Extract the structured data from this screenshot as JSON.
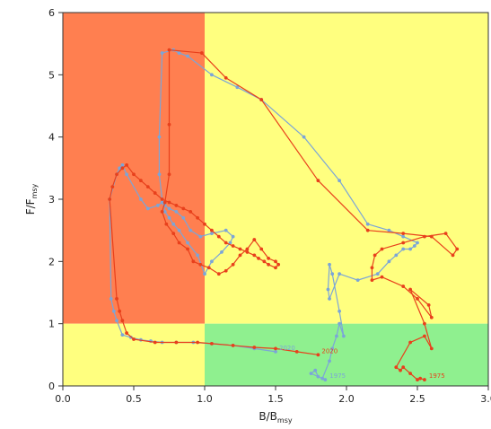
{
  "chart_data": {
    "type": "line",
    "xlabel": {
      "main": "B/B",
      "sub": "msy"
    },
    "ylabel": {
      "main": "F/F",
      "sub": "msy"
    },
    "xlim": [
      0,
      3.0
    ],
    "ylim": [
      0,
      6
    ],
    "x_ticks": [
      "0.0",
      "0.5",
      "1.0",
      "1.5",
      "2.0",
      "2.5",
      "3.0"
    ],
    "y_ticks": [
      "0",
      "1",
      "2",
      "3",
      "4",
      "5",
      "6"
    ],
    "zones": [
      {
        "x": [
          0,
          1
        ],
        "y": [
          1,
          6
        ],
        "color": "#ff7f50"
      },
      {
        "x": [
          1,
          3
        ],
        "y": [
          1,
          6
        ],
        "color": "#ffff7f"
      },
      {
        "x": [
          0,
          1
        ],
        "y": [
          0,
          1
        ],
        "color": "#ffff7f"
      },
      {
        "x": [
          1,
          3
        ],
        "y": [
          0,
          1
        ],
        "color": "#8ff08f"
      }
    ],
    "reference_lines": {
      "x": 1,
      "y": 1
    },
    "series": [
      {
        "color": "#7ba5d8",
        "start_label": "1975",
        "end_label": "2020",
        "x": [
          1.85,
          1.75,
          1.78,
          1.8,
          1.83,
          1.88,
          1.9,
          1.93,
          1.95,
          1.98,
          1.95,
          1.9,
          1.88,
          1.87,
          1.88,
          1.95,
          2.08,
          2.22,
          2.3,
          2.35,
          2.4,
          2.45,
          2.48,
          2.5,
          2.4,
          2.3,
          2.15,
          1.95,
          1.7,
          1.4,
          1.23,
          1.05,
          0.88,
          0.82,
          0.78,
          0.7,
          0.68,
          0.68,
          0.7,
          0.72,
          0.75,
          0.78,
          0.82,
          0.88,
          0.95,
          1.0,
          1.05,
          1.12,
          1.18,
          1.2,
          1.15,
          1.05,
          0.97,
          0.9,
          0.85,
          0.8,
          0.75,
          0.72,
          0.7,
          0.67,
          0.6,
          0.55,
          0.45,
          0.42,
          0.4,
          0.38,
          0.33,
          0.34,
          0.36,
          0.38,
          0.42,
          0.48,
          0.55,
          0.62,
          0.7,
          0.8,
          0.92,
          1.05,
          1.2,
          1.35,
          1.5
        ],
        "y": [
          0.1,
          0.2,
          0.25,
          0.15,
          0.12,
          0.4,
          0.6,
          0.8,
          1.0,
          0.8,
          1.2,
          1.8,
          1.95,
          1.55,
          1.4,
          1.8,
          1.7,
          1.8,
          2.0,
          2.1,
          2.2,
          2.2,
          2.25,
          2.3,
          2.4,
          2.5,
          2.6,
          3.3,
          4.0,
          4.6,
          4.8,
          5.0,
          5.3,
          5.35,
          5.4,
          5.35,
          4.0,
          3.4,
          3.0,
          2.8,
          2.7,
          2.6,
          2.5,
          2.3,
          2.1,
          1.8,
          2.0,
          2.15,
          2.3,
          2.4,
          2.5,
          2.45,
          2.4,
          2.5,
          2.7,
          2.8,
          2.85,
          2.9,
          2.95,
          2.9,
          2.85,
          3.0,
          3.4,
          3.55,
          3.5,
          3.4,
          3.0,
          1.4,
          1.2,
          1.05,
          0.82,
          0.78,
          0.74,
          0.72,
          0.7,
          0.7,
          0.7,
          0.68,
          0.65,
          0.6,
          0.55
        ]
      },
      {
        "color": "#e8401c",
        "start_label": "1975",
        "end_label": "2020",
        "x": [
          2.55,
          2.52,
          2.5,
          2.45,
          2.4,
          2.38,
          2.35,
          2.45,
          2.55,
          2.6,
          2.55,
          2.45,
          2.58,
          2.6,
          2.5,
          2.4,
          2.25,
          2.18,
          2.18,
          2.2,
          2.25,
          2.4,
          2.55,
          2.7,
          2.78,
          2.75,
          2.6,
          2.4,
          2.15,
          1.8,
          1.4,
          1.15,
          0.98,
          0.75,
          0.75,
          0.75,
          0.72,
          0.7,
          0.73,
          0.78,
          0.82,
          0.88,
          0.92,
          0.97,
          1.03,
          1.1,
          1.15,
          1.2,
          1.25,
          1.3,
          1.35,
          1.4,
          1.45,
          1.5,
          1.52,
          1.5,
          1.45,
          1.42,
          1.38,
          1.35,
          1.3,
          1.25,
          1.2,
          1.15,
          1.1,
          1.05,
          1.0,
          0.95,
          0.9,
          0.85,
          0.8,
          0.75,
          0.7,
          0.65,
          0.6,
          0.55,
          0.5,
          0.45,
          0.42,
          0.38,
          0.35,
          0.33,
          0.38,
          0.4,
          0.42,
          0.45,
          0.5,
          0.65,
          0.8,
          0.95,
          1.05,
          1.2,
          1.35,
          1.5,
          1.65,
          1.8
        ],
        "y": [
          0.1,
          0.12,
          0.1,
          0.2,
          0.3,
          0.25,
          0.3,
          0.7,
          0.8,
          0.6,
          1.0,
          1.55,
          1.3,
          1.1,
          1.4,
          1.6,
          1.75,
          1.7,
          1.9,
          2.1,
          2.2,
          2.3,
          2.4,
          2.45,
          2.2,
          2.1,
          2.4,
          2.45,
          2.5,
          3.3,
          4.6,
          4.95,
          5.35,
          5.4,
          4.2,
          3.4,
          2.95,
          2.8,
          2.6,
          2.45,
          2.3,
          2.2,
          2.0,
          1.95,
          1.9,
          1.8,
          1.85,
          1.95,
          2.1,
          2.2,
          2.35,
          2.2,
          2.05,
          2.0,
          1.95,
          1.9,
          1.95,
          2.0,
          2.05,
          2.1,
          2.15,
          2.2,
          2.25,
          2.3,
          2.4,
          2.5,
          2.6,
          2.7,
          2.8,
          2.85,
          2.9,
          2.95,
          3.0,
          3.1,
          3.2,
          3.3,
          3.4,
          3.55,
          3.5,
          3.4,
          3.2,
          3.0,
          1.4,
          1.2,
          1.05,
          0.85,
          0.75,
          0.7,
          0.7,
          0.7,
          0.68,
          0.65,
          0.62,
          0.6,
          0.55,
          0.5
        ]
      }
    ]
  }
}
